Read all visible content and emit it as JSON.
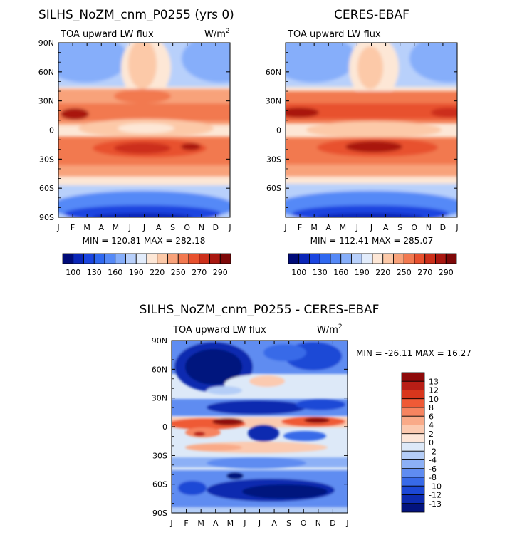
{
  "panels": {
    "model": {
      "title": "SILHS_NoZM_cnm_P0255 (yrs 0)",
      "subtitle": "TOA upward LW flux",
      "units_base": "W/m",
      "units_exp": "2",
      "stats": "MIN = 120.81 MAX = 282.18"
    },
    "obs": {
      "title": "CERES-EBAF",
      "subtitle": "TOA upward LW flux",
      "stats": "MIN = 112.41 MAX = 285.07"
    },
    "diff": {
      "title": "SILHS_NoZM_cnm_P0255 - CERES-EBAF",
      "subtitle": "TOA upward LW flux",
      "units_base": "W/m",
      "units_exp": "2",
      "stats": "MIN = -26.11 MAX =  16.27"
    }
  },
  "chart_data": [
    {
      "type": "heatmap",
      "title": "SILHS_NoZM_cnm_P0255 (yrs 0)",
      "subtitle": "TOA upward LW flux",
      "units": "W/m2",
      "x_tick_labels": [
        "J",
        "F",
        "M",
        "A",
        "M",
        "J",
        "J",
        "A",
        "S",
        "O",
        "N",
        "D",
        "J"
      ],
      "y_tick_labels": [
        "90N",
        "60N",
        "30N",
        "0",
        "30S",
        "60S",
        "90S"
      ],
      "min": 120.81,
      "max": 282.18,
      "colorbar_labels": [
        "100",
        "130",
        "160",
        "190",
        "220",
        "250",
        "270",
        "290"
      ],
      "colorbar_colors": [
        "#000b78",
        "#0a26b8",
        "#1a45e0",
        "#2f68f0",
        "#5589f7",
        "#86aefa",
        "#b8d0fb",
        "#e2ecfb",
        "#fde7d6",
        "#fcc9a8",
        "#f8a27a",
        "#f27950",
        "#e8512e",
        "#cc2f1a",
        "#a91710",
        "#7e0808"
      ]
    },
    {
      "type": "heatmap",
      "title": "CERES-EBAF",
      "subtitle": "TOA upward LW flux",
      "x_tick_labels": [
        "J",
        "F",
        "M",
        "A",
        "M",
        "J",
        "J",
        "A",
        "S",
        "O",
        "N",
        "D",
        "J"
      ],
      "y_tick_labels": [
        "60N",
        "30N",
        "0",
        "30S",
        "60S"
      ],
      "min": 112.41,
      "max": 285.07,
      "colorbar_labels": [
        "100",
        "130",
        "160",
        "190",
        "220",
        "250",
        "270",
        "290"
      ]
    },
    {
      "type": "heatmap",
      "title": "SILHS_NoZM_cnm_P0255 - CERES-EBAF",
      "subtitle": "TOA upward LW flux",
      "units": "W/m2",
      "x_tick_labels": [
        "J",
        "F",
        "M",
        "A",
        "M",
        "J",
        "J",
        "A",
        "S",
        "O",
        "N",
        "D",
        "J"
      ],
      "y_tick_labels": [
        "90N",
        "60N",
        "30N",
        "0",
        "30S",
        "60S",
        "90S"
      ],
      "min": -26.11,
      "max": 16.27,
      "colorbar_labels": [
        "13",
        "12",
        "10",
        "8",
        "6",
        "4",
        "2",
        "0",
        "-2",
        "-4",
        "-6",
        "-8",
        "-10",
        "-12",
        "-13"
      ],
      "colorbar_colors": [
        "#8e0a0a",
        "#b81e16",
        "#d8361c",
        "#ef5a36",
        "#f68460",
        "#f9aa88",
        "#fbcab0",
        "#fde6d8",
        "#dde9f8",
        "#b4cdf7",
        "#8cb0f6",
        "#5f8cf1",
        "#386ae8",
        "#1c48d6",
        "#0d2bb0",
        "#03137e"
      ]
    }
  ]
}
